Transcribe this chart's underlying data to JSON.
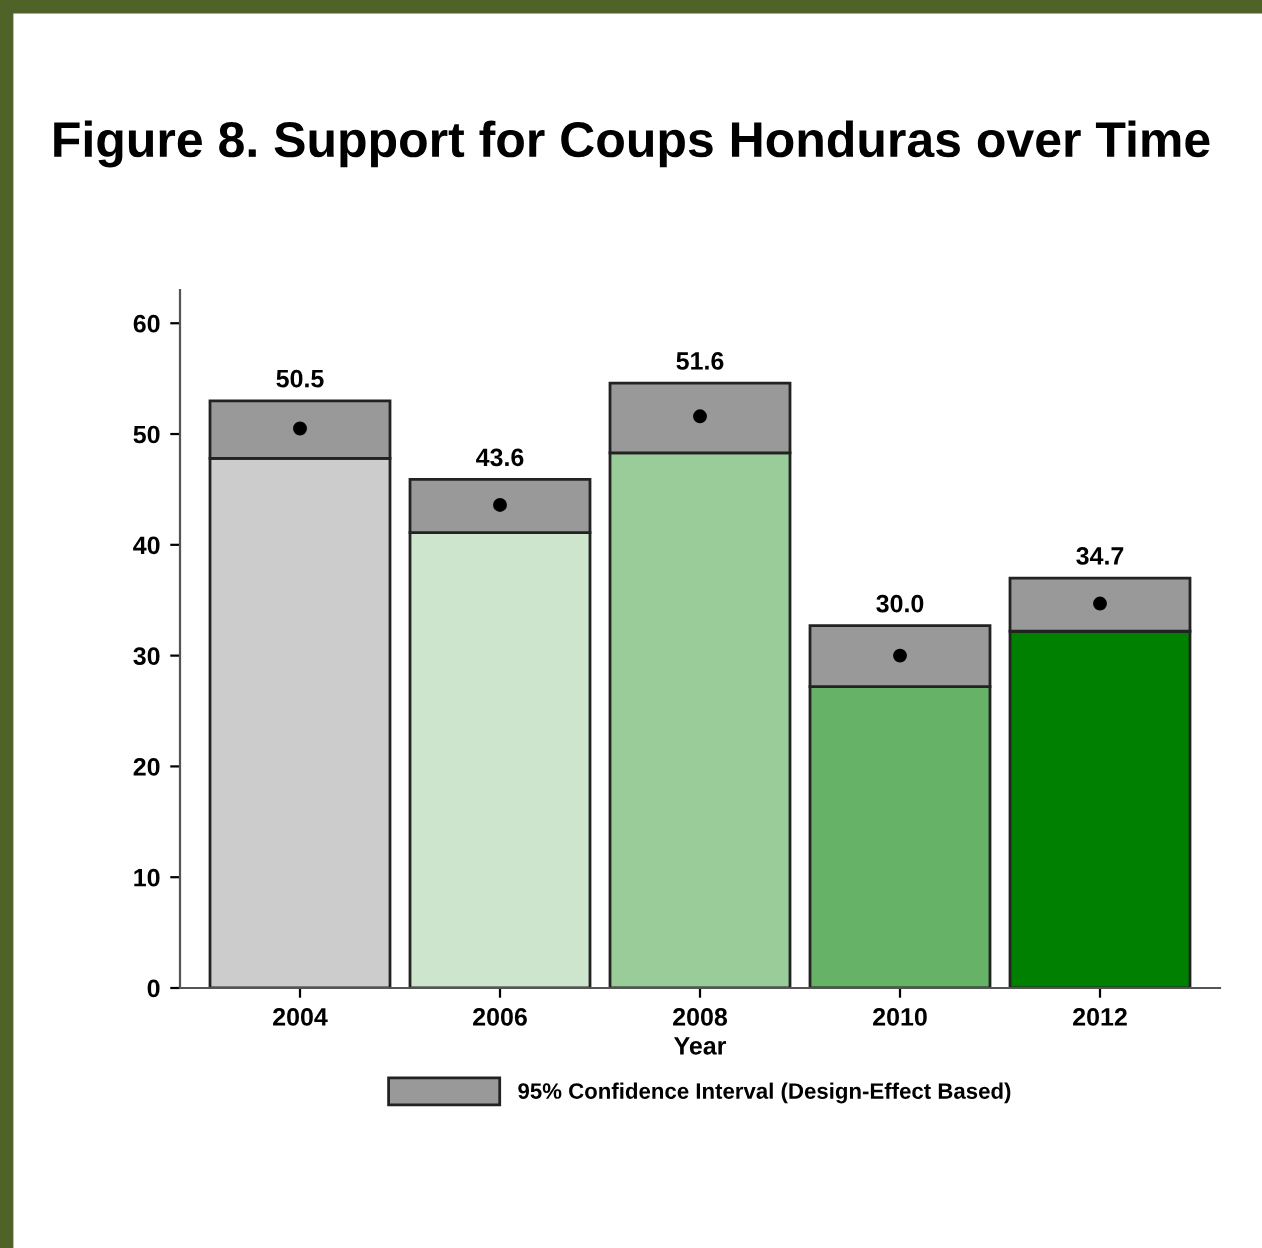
{
  "chart_data": {
    "type": "bar",
    "title": "Figure 8. Support for Coups Honduras over Time",
    "xlabel": "Year",
    "categories": [
      "2004",
      "2006",
      "2008",
      "2010",
      "2012"
    ],
    "stacked": true,
    "series": [
      {
        "colors": [
          "#cccccc",
          "#cce5cc",
          "#99cc99",
          "#66b266",
          "#008000"
        ],
        "values": [
          47.8,
          41.1,
          48.3,
          27.2,
          32.2
        ]
      },
      {
        "name": "95% Confidence Interval (Design-Effect Based)",
        "color": "#999999",
        "values": [
          5.2,
          4.8,
          6.3,
          5.5,
          4.8
        ]
      },
      {
        "type": "scatter",
        "color": "#000000",
        "values": [
          50.5,
          43.6,
          51.6,
          30.0,
          34.7
        ],
        "value_labels": [
          "50.5",
          "43.6",
          "51.6",
          "30.0",
          "34.7"
        ]
      }
    ],
    "ylim": [
      0,
      63
    ],
    "yticks": [
      0,
      10,
      20,
      30,
      40,
      50,
      60
    ],
    "grid": false,
    "legend": "bottom",
    "marker": "circle"
  }
}
